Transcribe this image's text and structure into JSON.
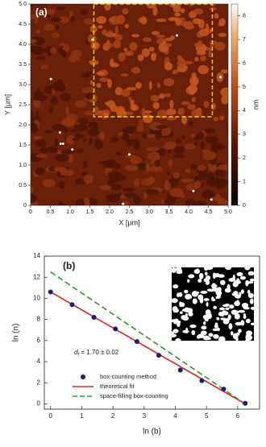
{
  "chart_data": [
    {
      "type": "image",
      "label": "(a)",
      "xlabel": "X [μm]",
      "ylabel": "Y [μm]",
      "xlim": [
        0,
        5
      ],
      "ylim": [
        0,
        5
      ],
      "xticks": [
        0,
        0.5,
        {
          "value": 1,
          "label": "1.0"
        },
        1.5,
        {
          "value": 2,
          "label": "2.0"
        },
        2.5,
        {
          "value": 3,
          "label": "3.0"
        },
        3.5,
        {
          "value": 4,
          "label": "4.0"
        },
        4.5,
        {
          "value": 5,
          "label": "5.0"
        }
      ],
      "yticks": [
        0,
        0.5,
        {
          "value": 1,
          "label": "1.0"
        },
        1.5,
        {
          "value": 2,
          "label": "2.0"
        },
        2.5,
        {
          "value": 3,
          "label": "3.0"
        },
        3.5,
        {
          "value": 4,
          "label": "4.0"
        },
        4.5,
        {
          "value": 5,
          "label": "5.0"
        }
      ],
      "highlight_box": {
        "x": [
          1.6,
          4.6
        ],
        "y": [
          2.2,
          5.0
        ],
        "color": "#f0d020"
      },
      "colorbar": {
        "label": "nm",
        "lim": [
          0,
          8.5
        ],
        "ticks": [
          0,
          1,
          2,
          3,
          4,
          5,
          6,
          7,
          8
        ]
      }
    },
    {
      "type": "scatter",
      "label": "(b)",
      "xlabel": "ln (b)",
      "ylabel": "ln (n)",
      "xlim": [
        -0.2,
        6.7
      ],
      "ylim": [
        -0.5,
        14
      ],
      "xticks": [
        0,
        1,
        2,
        3,
        4,
        5,
        6
      ],
      "yticks": [
        0,
        2,
        4,
        6,
        8,
        10,
        12,
        14
      ],
      "annotation": {
        "symbol": "d",
        "subscript": "f",
        "text": " = 1.70 ± 0.02"
      },
      "series": [
        {
          "name": "box-counting method",
          "mode": "markers",
          "color": "#1c1c70",
          "x": [
            0,
            0.69,
            1.39,
            2.08,
            2.77,
            3.47,
            4.16,
            4.85,
            5.55,
            6.24
          ],
          "values": [
            10.6,
            9.4,
            8.2,
            7.1,
            5.9,
            4.6,
            3.2,
            2.2,
            1.4,
            0.05
          ]
        },
        {
          "name": "theoretical fit",
          "mode": "line",
          "color": "#e02424",
          "x": [
            0,
            6.24
          ],
          "values": [
            10.6,
            0
          ]
        },
        {
          "name": "space-filling box-counting",
          "mode": "dashed",
          "color": "#2a9a2a",
          "x": [
            0,
            6.24
          ],
          "values": [
            12.5,
            0
          ]
        }
      ]
    }
  ]
}
